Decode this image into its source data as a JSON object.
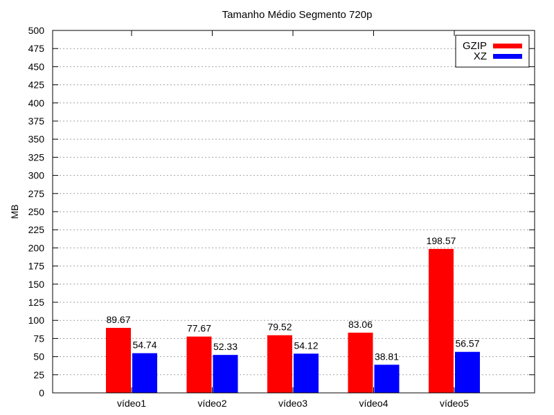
{
  "chart_data": {
    "type": "bar",
    "title": "Tamanho Médio Segmento 720p",
    "xlabel": "",
    "ylabel": "MB",
    "categories": [
      "vídeo1",
      "vídeo2",
      "vídeo3",
      "vídeo4",
      "vídeo5"
    ],
    "series": [
      {
        "name": "GZIP",
        "color": "#ff0000",
        "values": [
          89.67,
          77.67,
          79.52,
          83.06,
          198.57
        ]
      },
      {
        "name": "XZ",
        "color": "#0000ff",
        "values": [
          54.74,
          52.33,
          54.12,
          38.81,
          56.57
        ]
      }
    ],
    "data_labels": [
      [
        "89.67",
        "77.67",
        "79.52",
        "83.06",
        "198.57"
      ],
      [
        "54.74",
        "52.33",
        "54.12",
        "38.81",
        "56.57"
      ]
    ],
    "ylim": [
      0,
      500
    ],
    "yticks": [
      "0",
      "25",
      "50",
      "75",
      "100",
      "125",
      "150",
      "175",
      "200",
      "225",
      "250",
      "275",
      "300",
      "325",
      "350",
      "375",
      "400",
      "425",
      "450",
      "475",
      "500"
    ],
    "grid": true,
    "legend": "top-right"
  }
}
